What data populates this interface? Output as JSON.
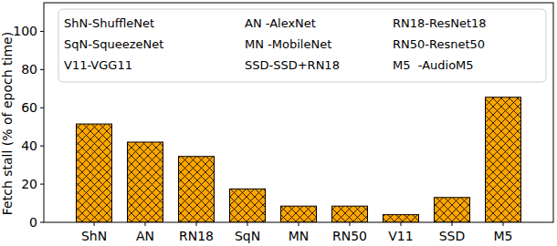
{
  "chart_data": {
    "type": "bar",
    "y_label": "Fetch stall (% of epoch time)",
    "categories": [
      "ShN",
      "AN",
      "RN18",
      "SqN",
      "MN",
      "RN50",
      "V11",
      "SSD",
      "M5"
    ],
    "values": [
      51.5,
      42,
      34.5,
      17.5,
      8.5,
      8.5,
      4,
      13,
      65.5
    ],
    "color": "#ffa500",
    "ylim": [
      0,
      115
    ],
    "yticks": [
      0,
      20,
      40,
      60,
      80,
      100
    ],
    "grid": false,
    "annotations": [
      "ShN-ShuffleNet",
      "AN -AlexNet",
      "RN18-ResNet18",
      "SqN-SqueezeNet",
      "MN -MobileNet",
      "RN50-Resnet50",
      "V11-VGG11",
      "SSD-SSD+RN18",
      "M5  -AudioM5"
    ]
  }
}
